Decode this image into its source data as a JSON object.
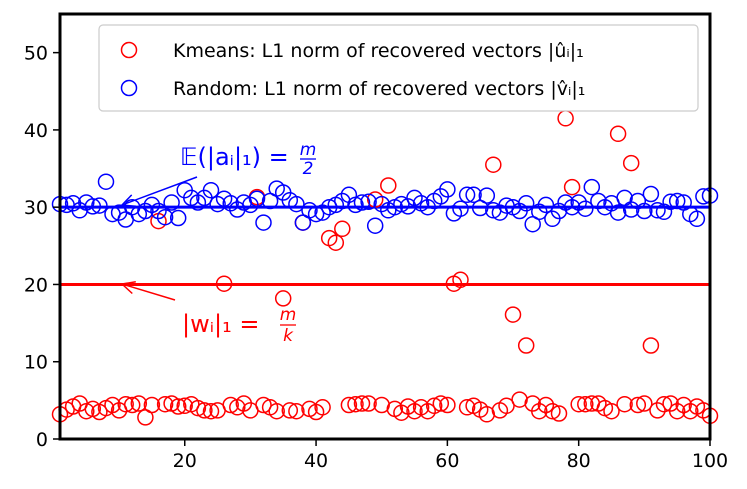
{
  "chart_data": {
    "type": "scatter",
    "xlim": [
      1,
      100
    ],
    "ylim": [
      0,
      55
    ],
    "x_ticks": [
      20,
      40,
      60,
      80,
      100
    ],
    "y_ticks": [
      0,
      10,
      20,
      30,
      40,
      50
    ],
    "grid": false,
    "legend_position": "top-right",
    "colors": {
      "kmeans": "#ff0000",
      "random": "#0000ff"
    },
    "series": [
      {
        "name": "Kmeans: L1 norm of recovered vectors |ûᵢ|₁",
        "marker": "open-circle",
        "color": "#ff0000",
        "x": [
          1,
          2,
          3,
          4,
          5,
          6,
          7,
          8,
          9,
          10,
          11,
          12,
          13,
          14,
          15,
          16,
          17,
          18,
          19,
          20,
          21,
          22,
          23,
          24,
          25,
          26,
          27,
          28,
          29,
          30,
          31,
          32,
          33,
          34,
          35,
          36,
          37,
          38,
          39,
          40,
          41,
          42,
          43,
          44,
          45,
          46,
          47,
          48,
          49,
          50,
          51,
          52,
          53,
          54,
          55,
          56,
          57,
          58,
          59,
          60,
          61,
          62,
          63,
          64,
          65,
          66,
          67,
          68,
          69,
          70,
          71,
          72,
          73,
          74,
          75,
          76,
          77,
          78,
          79,
          80,
          81,
          82,
          83,
          84,
          85,
          86,
          87,
          88,
          89,
          90,
          91,
          92,
          93,
          94,
          95,
          96,
          97,
          98,
          99,
          100
        ],
        "y": [
          3.2,
          3.8,
          4.2,
          4.6,
          3.6,
          3.9,
          3.5,
          4.0,
          4.4,
          3.7,
          4.5,
          4.4,
          4.6,
          2.8,
          4.4,
          28.2,
          4.5,
          4.6,
          4.2,
          4.3,
          4.5,
          4.0,
          3.7,
          3.6,
          3.7,
          20.1,
          4.4,
          4.1,
          4.6,
          3.7,
          31.3,
          4.4,
          4.1,
          3.6,
          18.2,
          3.7,
          3.6,
          28.0,
          3.9,
          3.5,
          4.1,
          26.0,
          25.4,
          27.2,
          4.4,
          4.5,
          4.6,
          4.6,
          31.0,
          4.4,
          32.8,
          3.9,
          3.4,
          4.2,
          3.6,
          4.1,
          3.6,
          4.3,
          4.6,
          4.4,
          20.1,
          20.6,
          4.1,
          4.3,
          3.8,
          3.2,
          35.5,
          3.7,
          4.3,
          16.1,
          5.1,
          12.1,
          4.6,
          3.6,
          4.4,
          3.6,
          3.3,
          41.5,
          32.6,
          4.5,
          4.5,
          4.6,
          4.6,
          4.0,
          3.6,
          39.5,
          4.5,
          35.7,
          4.4,
          4.6,
          12.1,
          3.7,
          4.5,
          4.6,
          3.6,
          4.4,
          3.6,
          4.2,
          3.7,
          3.0
        ]
      },
      {
        "name": "Random: L1 norm of recovered vectors |v̂ᵢ|₁",
        "marker": "open-circle",
        "color": "#0000ff",
        "x": [
          1,
          2,
          3,
          4,
          5,
          6,
          7,
          8,
          9,
          10,
          11,
          12,
          13,
          14,
          15,
          16,
          17,
          18,
          19,
          20,
          21,
          22,
          23,
          24,
          25,
          26,
          27,
          28,
          29,
          30,
          31,
          32,
          33,
          34,
          35,
          36,
          37,
          38,
          39,
          40,
          41,
          42,
          43,
          44,
          45,
          46,
          47,
          48,
          49,
          50,
          51,
          52,
          53,
          54,
          55,
          56,
          57,
          58,
          59,
          60,
          61,
          62,
          63,
          64,
          65,
          66,
          67,
          68,
          69,
          70,
          71,
          72,
          73,
          74,
          75,
          76,
          77,
          78,
          79,
          80,
          81,
          82,
          83,
          84,
          85,
          86,
          87,
          88,
          89,
          90,
          91,
          92,
          93,
          94,
          95,
          96,
          97,
          98,
          99,
          100
        ],
        "y": [
          30.4,
          30.3,
          30.5,
          29.6,
          30.6,
          30.1,
          30.2,
          33.3,
          29.1,
          29.3,
          28.4,
          30.0,
          29.1,
          29.5,
          30.3,
          29.5,
          28.7,
          30.6,
          28.6,
          32.2,
          31.2,
          30.6,
          31.2,
          32.2,
          30.4,
          31.1,
          30.5,
          29.7,
          30.6,
          30.3,
          31.1,
          28.0,
          30.8,
          32.4,
          31.9,
          30.9,
          30.4,
          28.0,
          29.6,
          29.1,
          29.3,
          30.0,
          30.3,
          30.8,
          31.6,
          30.3,
          30.6,
          30.7,
          27.6,
          30.4,
          29.6,
          30.0,
          30.4,
          30.1,
          31.2,
          30.5,
          30.0,
          30.8,
          31.4,
          32.3,
          29.2,
          29.8,
          31.6,
          31.6,
          29.9,
          31.5,
          29.6,
          29.3,
          30.2,
          30.0,
          29.5,
          30.5,
          27.8,
          29.4,
          30.3,
          28.5,
          29.5,
          30.6,
          30.0,
          30.6,
          29.8,
          32.6,
          30.8,
          30.0,
          30.5,
          29.3,
          31.2,
          29.7,
          30.8,
          29.5,
          31.7,
          29.6,
          29.4,
          30.7,
          30.8,
          30.6,
          29.1,
          28.5,
          31.4,
          31.5
        ]
      }
    ],
    "reference_lines": [
      {
        "y": 30,
        "color": "#0000ff",
        "label": "𝔼(|aᵢ|₁) = m/2"
      },
      {
        "y": 20,
        "color": "#ff0000",
        "label": "|wᵢ|₁ = m/k"
      }
    ],
    "annotations": [
      {
        "text": "𝔼(|aᵢ|₁) =",
        "frac_num": "m",
        "frac_den": "2",
        "color": "#0000ff",
        "arrow_to": [
          10.5,
          30.3
        ]
      },
      {
        "text": "|wᵢ|₁ =",
        "frac_num": "m",
        "frac_den": "k",
        "color": "#ff0000",
        "arrow_to": [
          10.5,
          20.0
        ]
      }
    ]
  }
}
